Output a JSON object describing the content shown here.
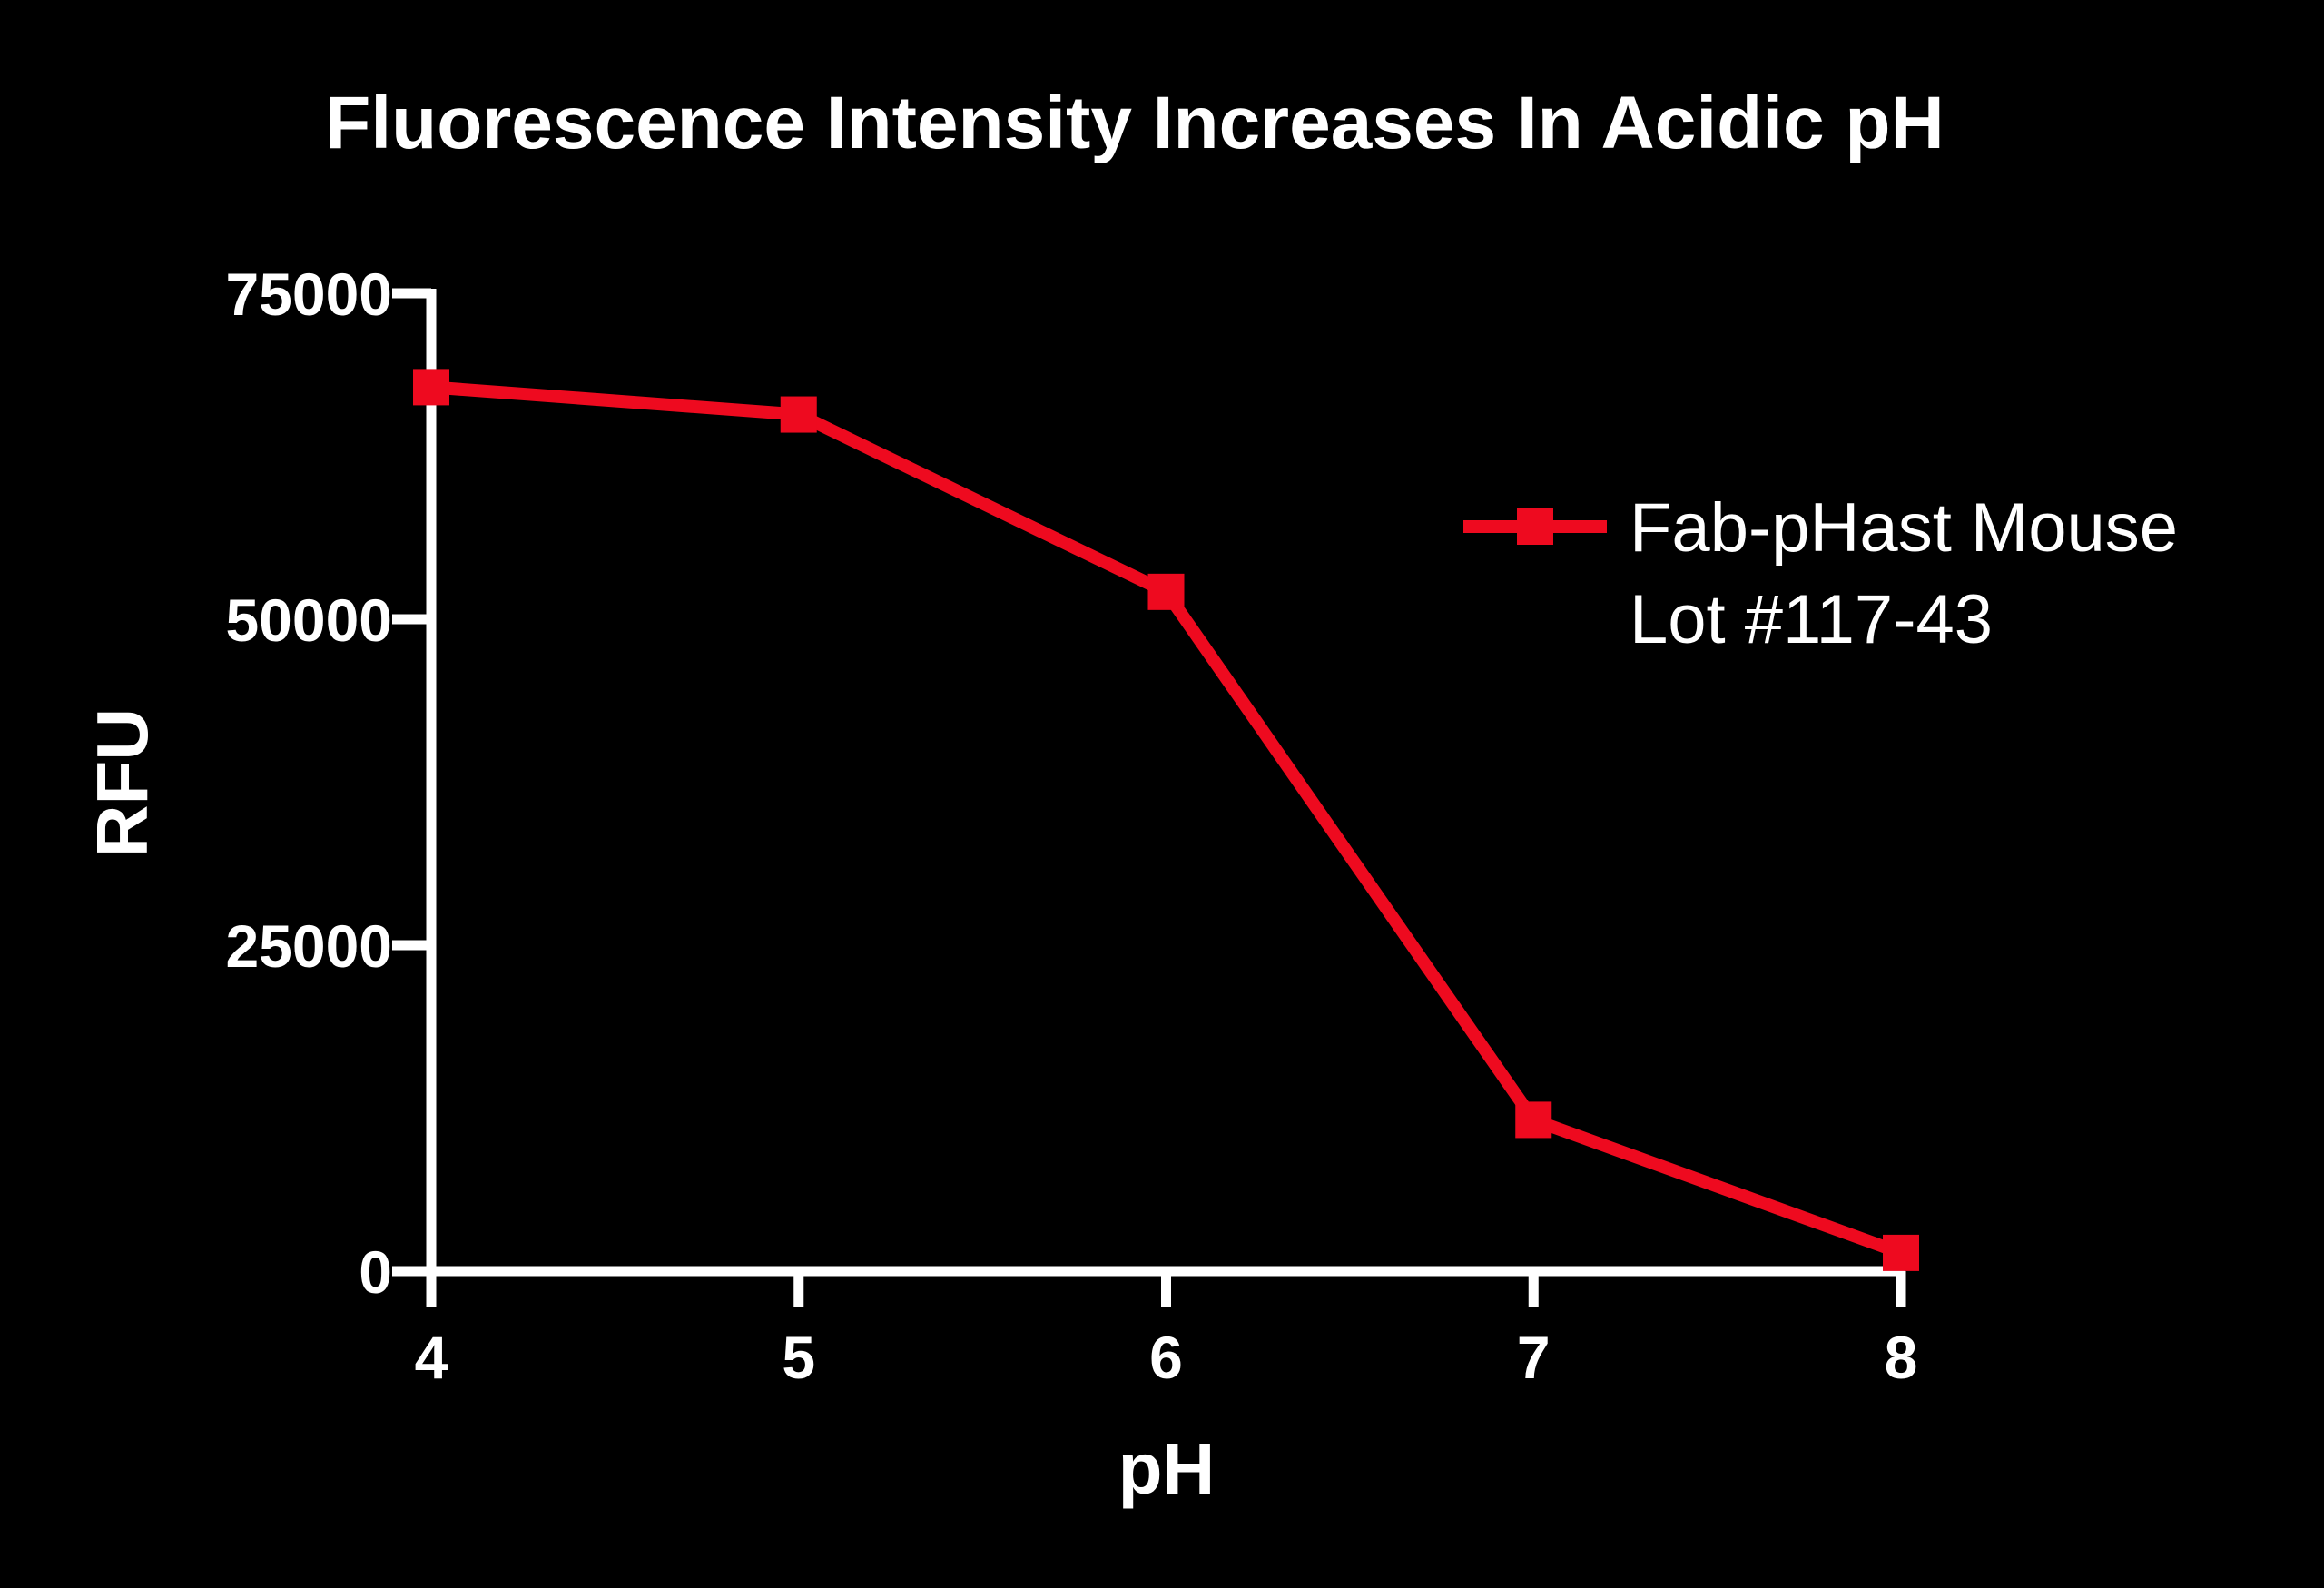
{
  "chart_data": {
    "type": "line",
    "title": "Fluorescence Intensity Increases In Acidic pH",
    "xlabel": "pH",
    "ylabel": "RFU",
    "x": [
      4,
      5,
      6,
      7,
      8
    ],
    "xticks": [
      "4",
      "5",
      "6",
      "7",
      "8"
    ],
    "yticks": [
      "0",
      "25000",
      "50000",
      "75000"
    ],
    "xlim": [
      4,
      8
    ],
    "ylim": [
      0,
      75000
    ],
    "grid": false,
    "legend_position": "top-right",
    "background_color": "#000000",
    "axis_color": "#ffffff",
    "series": [
      {
        "name_line1": "Fab-pHast Mouse",
        "name_line2": "Lot #117-43",
        "color": "#ee0a1f",
        "marker": "square",
        "values": [
          67800,
          65700,
          52100,
          11600,
          1400
        ]
      }
    ]
  }
}
